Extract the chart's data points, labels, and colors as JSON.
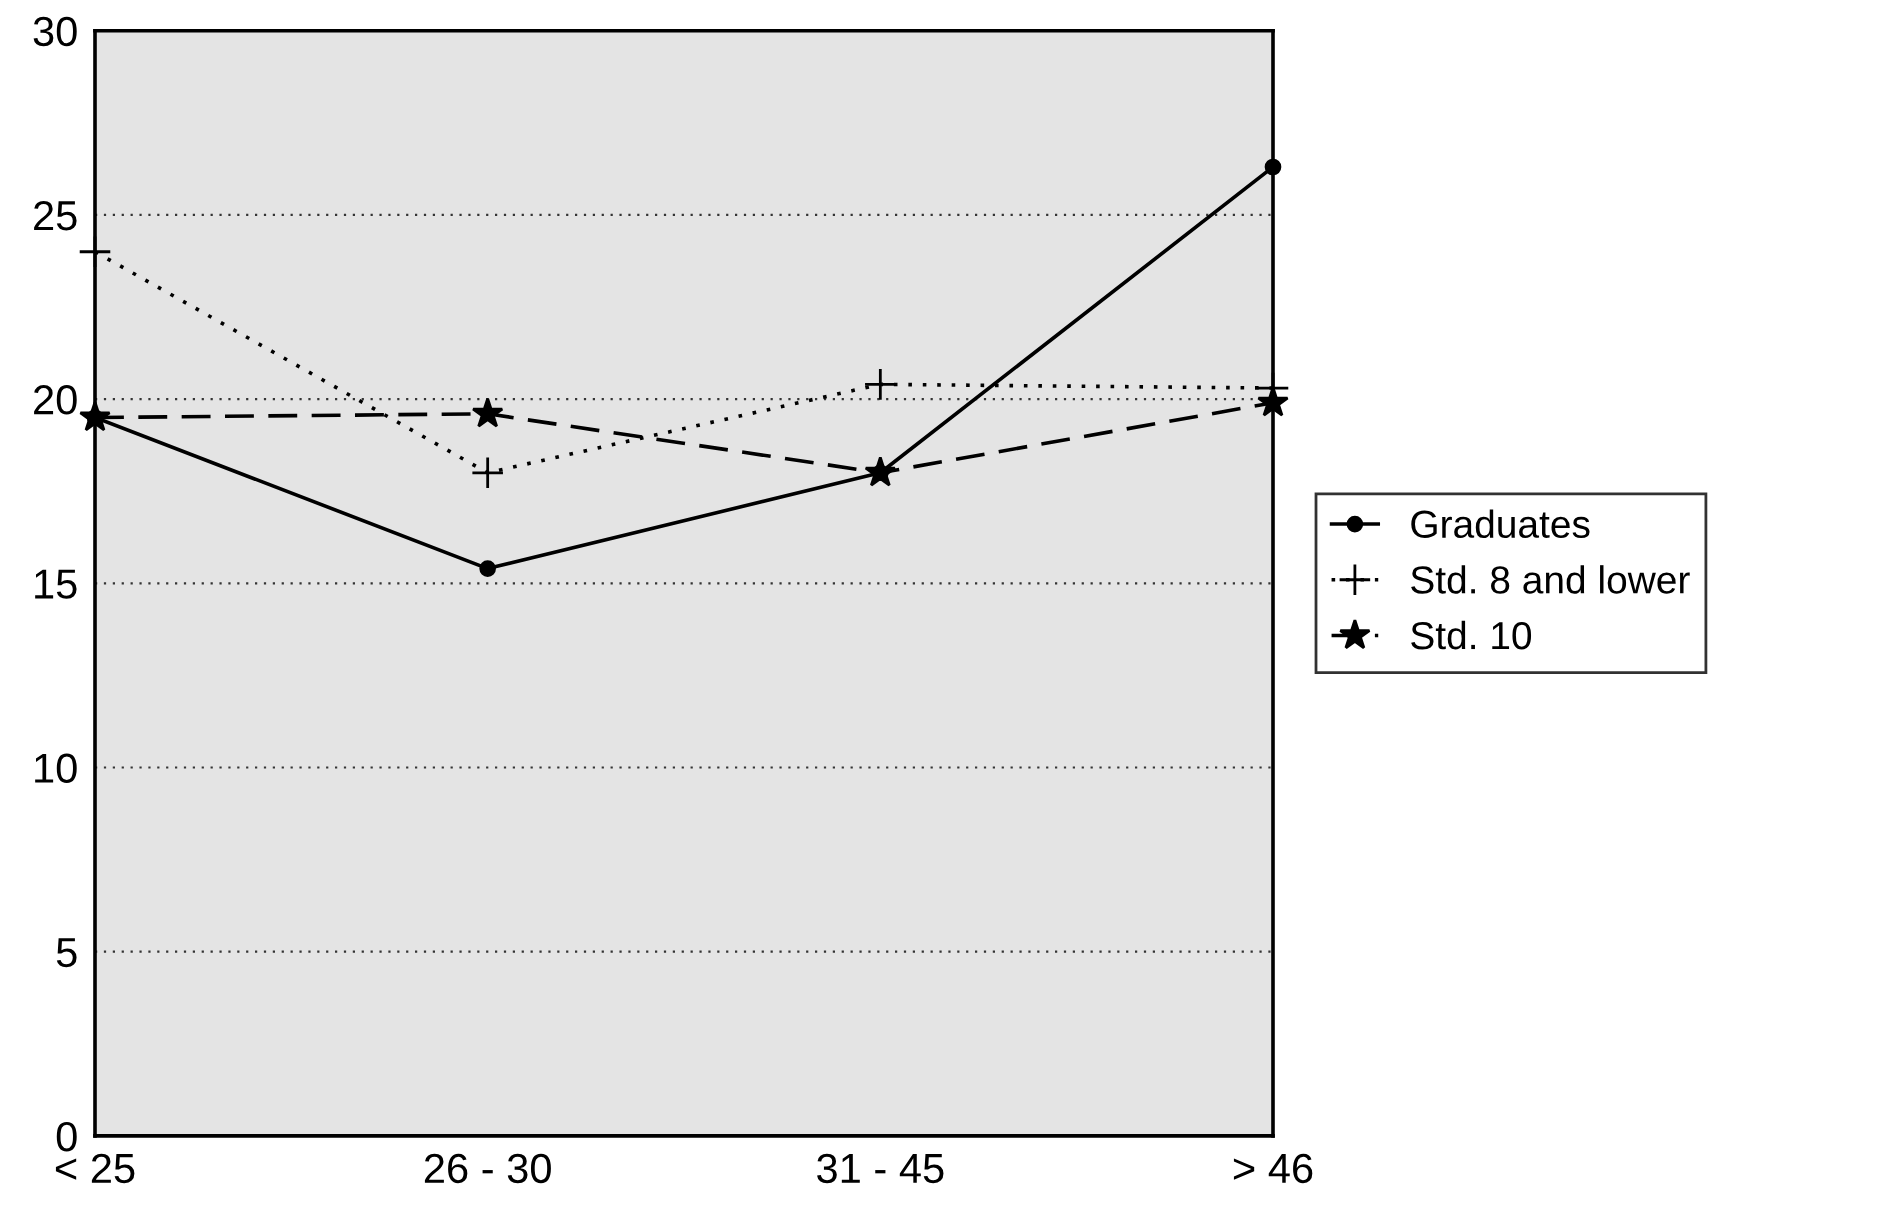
{
  "chart_data": {
    "type": "line",
    "categories": [
      "< 25",
      "26 - 30",
      "31 - 45",
      "> 46"
    ],
    "ylim": [
      0,
      30
    ],
    "yticks": [
      0,
      5,
      10,
      15,
      20,
      25,
      30
    ],
    "grid": "y",
    "legend": "right",
    "series": [
      {
        "name": "Graduates",
        "color": "#000000",
        "marker": "circle",
        "line_style": "solid",
        "values": [
          19.5,
          15.4,
          18.0,
          26.3
        ]
      },
      {
        "name": "Std. 8 and lower",
        "color": "#000000",
        "marker": "cross",
        "line_style": "dotted",
        "values": [
          24.0,
          18.0,
          20.4,
          20.3
        ]
      },
      {
        "name": "Std. 10",
        "color": "#000000",
        "marker": "star",
        "line_style": "dashed",
        "values": [
          19.5,
          19.6,
          18.0,
          19.9
        ]
      }
    ]
  }
}
